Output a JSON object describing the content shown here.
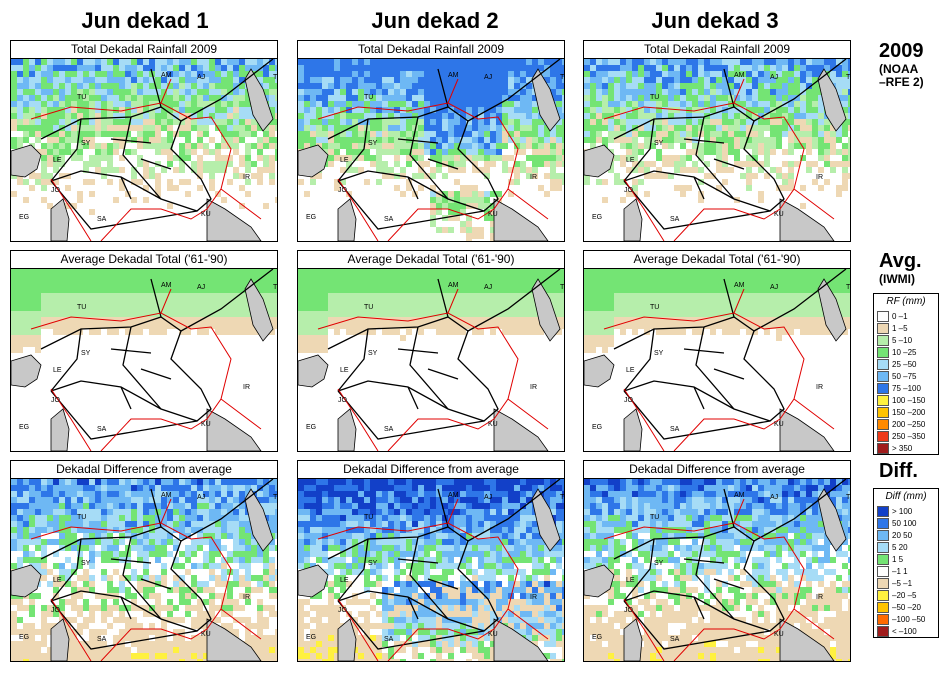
{
  "columns": [
    "Jun dekad 1",
    "Jun dekad 2",
    "Jun dekad 3"
  ],
  "row_titles": [
    "Total Dekadal Rainfall 2009",
    "Average Dekadal Total ('61-'90)",
    "Dekadal Difference from average"
  ],
  "row_labels": [
    {
      "big": "2009",
      "small": [
        "(NOAA",
        "–RFE 2)"
      ]
    },
    {
      "big": "Avg.",
      "small": [
        "(IWMI)"
      ]
    },
    {
      "big": "Diff.",
      "small": []
    }
  ],
  "map_labels": [
    "AM",
    "AJ",
    "TX",
    "TU",
    "SY",
    "LE",
    "IR",
    "JO",
    "EG",
    "SA",
    "KU"
  ],
  "rf_legend": {
    "title": "RF (mm)",
    "items": [
      {
        "label": "0 –1",
        "color": "#ffffff"
      },
      {
        "label": "1 –5",
        "color": "#eed8b4"
      },
      {
        "label": "5 –10",
        "color": "#b6eeab"
      },
      {
        "label": "10 –25",
        "color": "#74e474"
      },
      {
        "label": "25 –50",
        "color": "#a6dcf6"
      },
      {
        "label": "50 –75",
        "color": "#6eb8f4"
      },
      {
        "label": "75 –100",
        "color": "#2e76e8"
      },
      {
        "label": "100 –150",
        "color": "#fff13f"
      },
      {
        "label": "150 –200",
        "color": "#ffc300"
      },
      {
        "label": "200 –250",
        "color": "#ff8a00"
      },
      {
        "label": "250 –350",
        "color": "#ee3a1a"
      },
      {
        "label": "> 350",
        "color": "#a01c1c"
      }
    ]
  },
  "diff_legend": {
    "title": "Diff (mm)",
    "items": [
      {
        "label": "> 100",
        "color": "#1240c8"
      },
      {
        "label": "50  100",
        "color": "#2e76e8"
      },
      {
        "label": "20  50",
        "color": "#6eb8f4"
      },
      {
        "label": "5  20",
        "color": "#a6dcf6"
      },
      {
        "label": "1  5",
        "color": "#74e474"
      },
      {
        "label": "–1  1",
        "color": "#ffffff"
      },
      {
        "label": "–5 –1",
        "color": "#eed8b4"
      },
      {
        "label": "–20  –5",
        "color": "#fff13f"
      },
      {
        "label": "–50  –20",
        "color": "#ffc300"
      },
      {
        "label": "–100  –50",
        "color": "#ff6a00"
      },
      {
        "label": "< –100",
        "color": "#a01c1c"
      }
    ]
  }
}
